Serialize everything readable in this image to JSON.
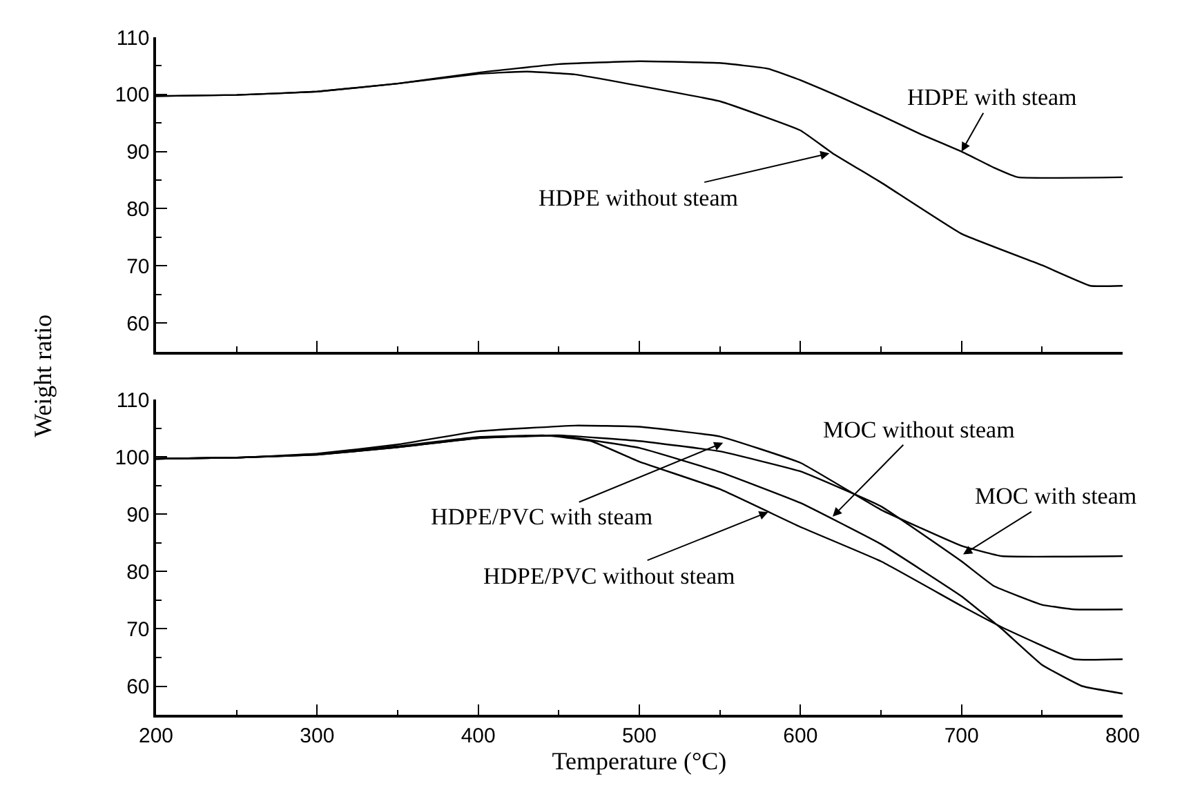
{
  "chart_data": [
    {
      "type": "line",
      "ylabel": "Weight ratio",
      "xlim": [
        200,
        800
      ],
      "ylim": [
        55,
        110
      ],
      "xticks": [
        200,
        300,
        400,
        500,
        600,
        700,
        800
      ],
      "yticks": [
        60,
        70,
        80,
        90,
        100,
        110
      ],
      "tick_labels": "y",
      "grid": false,
      "marker": "none",
      "line_style": "solid",
      "series": [
        {
          "color": "#000000",
          "x": [
            200,
            250,
            300,
            350,
            400,
            450,
            500,
            550,
            580,
            600,
            625,
            650,
            675,
            700,
            720,
            735,
            800
          ],
          "values": [
            99.7,
            99.9,
            100.5,
            101.9,
            103.8,
            105.3,
            105.8,
            105.5,
            104.5,
            102.5,
            99.5,
            96.3,
            93,
            90,
            87.2,
            85.5,
            85.5
          ]
        },
        {
          "color": "#000000",
          "x": [
            200,
            250,
            300,
            350,
            400,
            430,
            460,
            500,
            550,
            600,
            620,
            650,
            700,
            750,
            780,
            800
          ],
          "values": [
            99.7,
            99.9,
            100.5,
            101.9,
            103.6,
            104,
            103.5,
            101.5,
            98.8,
            93.7,
            89.7,
            84.6,
            75.6,
            70.1,
            66.5,
            66.5
          ]
        }
      ],
      "annotations": [
        {
          "text": "HDPE with steam",
          "x": 700,
          "y": 90
        },
        {
          "text": "HDPE without steam",
          "x": 618,
          "y": 89.7
        }
      ]
    },
    {
      "type": "line",
      "xlabel": "Temperature (°C)",
      "xlim": [
        200,
        800
      ],
      "ylim": [
        55,
        110
      ],
      "xticks": [
        200,
        300,
        400,
        500,
        600,
        700,
        800
      ],
      "yticks": [
        60,
        70,
        80,
        90,
        100,
        110
      ],
      "grid": false,
      "marker": "none",
      "line_style": "solid",
      "series": [
        {
          "color": "#000000",
          "x": [
            200,
            250,
            300,
            350,
            400,
            460,
            500,
            550,
            600,
            650,
            700,
            725,
            800
          ],
          "values": [
            99.7,
            99.9,
            100.6,
            102.2,
            104.5,
            105.5,
            105.3,
            103.6,
            99,
            90.8,
            84.5,
            82.7,
            82.7
          ]
        },
        {
          "color": "#000000",
          "x": [
            200,
            250,
            300,
            350,
            400,
            450,
            500,
            550,
            600,
            650,
            700,
            720,
            750,
            770,
            800
          ],
          "values": [
            99.7,
            99.9,
            100.5,
            101.9,
            103.5,
            103.8,
            102.8,
            101,
            97.5,
            91.4,
            81.8,
            77.5,
            74.2,
            73.4,
            73.4
          ]
        },
        {
          "color": "#000000",
          "x": [
            200,
            250,
            300,
            350,
            400,
            450,
            500,
            550,
            600,
            650,
            700,
            725,
            750,
            775,
            800
          ],
          "values": [
            99.7,
            99.9,
            100.4,
            101.7,
            103.3,
            103.7,
            101.6,
            97.4,
            92,
            84.8,
            75.7,
            70,
            63.7,
            60,
            58.7
          ]
        },
        {
          "color": "#000000",
          "x": [
            200,
            250,
            300,
            350,
            400,
            440,
            470,
            500,
            550,
            600,
            650,
            700,
            725,
            770,
            800
          ],
          "values": [
            99.7,
            99.9,
            100.4,
            101.7,
            103.3,
            103.8,
            102.8,
            99.2,
            94.4,
            87.8,
            81.8,
            74,
            70.3,
            64.7,
            64.7
          ]
        }
      ],
      "annotations": [
        {
          "text": "HDPE/PVC with steam",
          "x": 552,
          "y": 102.5
        },
        {
          "text": "MOC without steam",
          "x": 620,
          "y": 89.6
        },
        {
          "text": "MOC with steam",
          "x": 701,
          "y": 83
        },
        {
          "text": "HDPE/PVC without steam",
          "x": 580,
          "y": 90.4
        }
      ]
    }
  ]
}
